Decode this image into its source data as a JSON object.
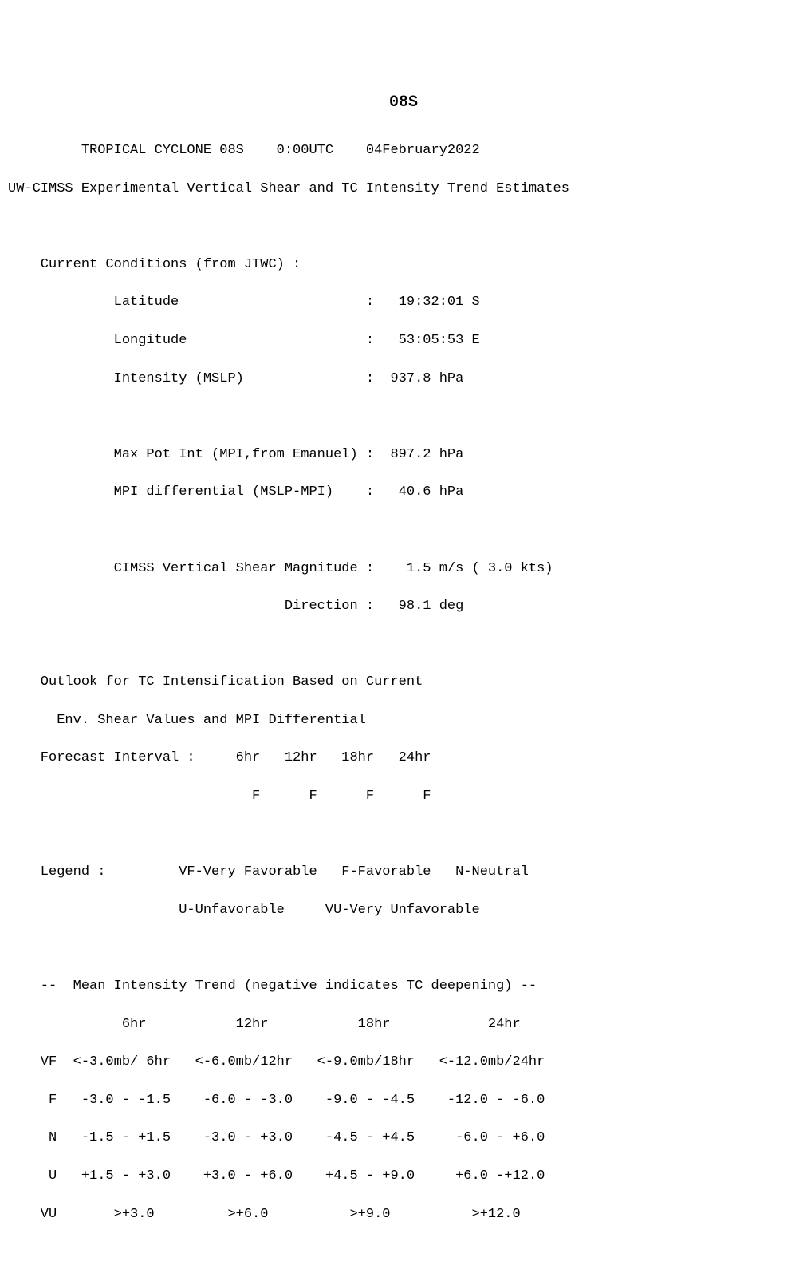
{
  "header": {
    "storm_id": "08S",
    "bulletin_line1": "         TROPICAL CYCLONE 08S    0:00UTC    04February2022",
    "bulletin_line2": "UW-CIMSS Experimental Vertical Shear and TC Intensity Trend Estimates"
  },
  "current": {
    "section_title": "    Current Conditions (from JTWC) :",
    "latitude_line": "             Latitude                       :   19:32:01 S",
    "longitude_line": "             Longitude                      :   53:05:53 E",
    "intensity_line": "             Intensity (MSLP)               :  937.8 hPa",
    "mpi_line": "             Max Pot Int (MPI,from Emanuel) :  897.2 hPa",
    "mpidiff_line": "             MPI differential (MSLP-MPI)    :   40.6 hPa",
    "shear_mag_line": "             CIMSS Vertical Shear Magnitude :    1.5 m/s ( 3.0 kts)",
    "shear_dir_line": "                                  Direction :   98.1 deg"
  },
  "outlook": {
    "title1": "    Outlook for TC Intensification Based on Current",
    "title2": "      Env. Shear Values and MPI Differential",
    "interval_header": "    Forecast Interval :     6hr   12hr   18hr   24hr",
    "interval_values": "                              F      F      F      F"
  },
  "legend": {
    "line1": "    Legend :         VF-Very Favorable   F-Favorable   N-Neutral",
    "line2": "                     U-Unfavorable     VU-Very Unfavorable"
  },
  "trend": {
    "title": "    --  Mean Intensity Trend (negative indicates TC deepening) --",
    "header": "              6hr           12hr           18hr            24hr",
    "vf": "    VF  <-3.0mb/ 6hr   <-6.0mb/12hr   <-9.0mb/18hr   <-12.0mb/24hr",
    "f": "     F   -3.0 - -1.5    -6.0 - -3.0    -9.0 - -4.5    -12.0 - -6.0",
    "n": "     N   -1.5 - +1.5    -3.0 - +3.0    -4.5 - +4.5     -6.0 - +6.0",
    "u": "     U   +1.5 - +3.0    +3.0 - +6.0    +4.5 - +9.0     +6.0 -+12.0",
    "vu": "    VU       >+3.0         >+6.0          >+9.0          >+12.0"
  }
}
